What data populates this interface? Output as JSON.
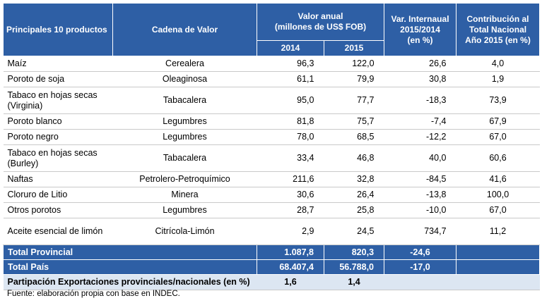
{
  "header": {
    "col_product": "Principales 10 productos",
    "col_chain": "Cadena de Valor",
    "col_value": "Valor anual\n(millones de US$ FOB)",
    "col_var": "Var. Internaual\n2015/2014\n(en %)",
    "col_contrib": "Contribución al\nTotal Nacional\nAño 2015 (en %)",
    "year_2014": "2014",
    "year_2015": "2015"
  },
  "rows": [
    {
      "product": "Maíz",
      "chain": "Cerealera",
      "v2014": "96,3",
      "v2015": "122,0",
      "var": "26,6",
      "contrib": "4,0"
    },
    {
      "product": "Poroto de soja",
      "chain": "Oleaginosa",
      "v2014": "61,1",
      "v2015": "79,9",
      "var": "30,8",
      "contrib": "1,9"
    },
    {
      "product": "Tabaco en hojas secas (Virginia)",
      "chain": "Tabacalera",
      "v2014": "95,0",
      "v2015": "77,7",
      "var": "-18,3",
      "contrib": "73,9"
    },
    {
      "product": "Poroto blanco",
      "chain": "Legumbres",
      "v2014": "81,8",
      "v2015": "75,7",
      "var": "-7,4",
      "contrib": "67,9"
    },
    {
      "product": "Poroto negro",
      "chain": "Legumbres",
      "v2014": "78,0",
      "v2015": "68,5",
      "var": "-12,2",
      "contrib": "67,0"
    },
    {
      "product": "Tabaco en hojas secas (Burley)",
      "chain": "Tabacalera",
      "v2014": "33,4",
      "v2015": "46,8",
      "var": "40,0",
      "contrib": "60,6"
    },
    {
      "product": "Naftas",
      "chain": "Petrolero-Petroquímico",
      "v2014": "211,6",
      "v2015": "32,8",
      "var": "-84,5",
      "contrib": "41,6"
    },
    {
      "product": "Cloruro de Litio",
      "chain": "Minera",
      "v2014": "30,6",
      "v2015": "26,4",
      "var": "-13,8",
      "contrib": "100,0"
    },
    {
      "product": "Otros porotos",
      "chain": "Legumbres",
      "v2014": "28,7",
      "v2015": "25,8",
      "var": "-10,0",
      "contrib": "67,0"
    },
    {
      "product": "Aceite esencial de limón",
      "chain": "Citrícola-Limón",
      "v2014": "2,9",
      "v2015": "24,5",
      "var": "734,7",
      "contrib": "11,2"
    }
  ],
  "totals": {
    "provincial": {
      "label": "Total Provincial",
      "v2014": "1.087,8",
      "v2015": "820,3",
      "var": "-24,6"
    },
    "pais": {
      "label": "Total País",
      "v2014": "68.407,4",
      "v2015": "56.788,0",
      "var": "-17,0"
    },
    "share": {
      "label": "Partipación Exportaciones provinciales/nacionales (en %)",
      "v2014": "1,6",
      "v2015": "1,4"
    }
  },
  "source": "Fuente: elaboración propia con base en INDEC.",
  "colors": {
    "header_bg": "#2e5fa5",
    "footer_light": "#dce6f2"
  }
}
